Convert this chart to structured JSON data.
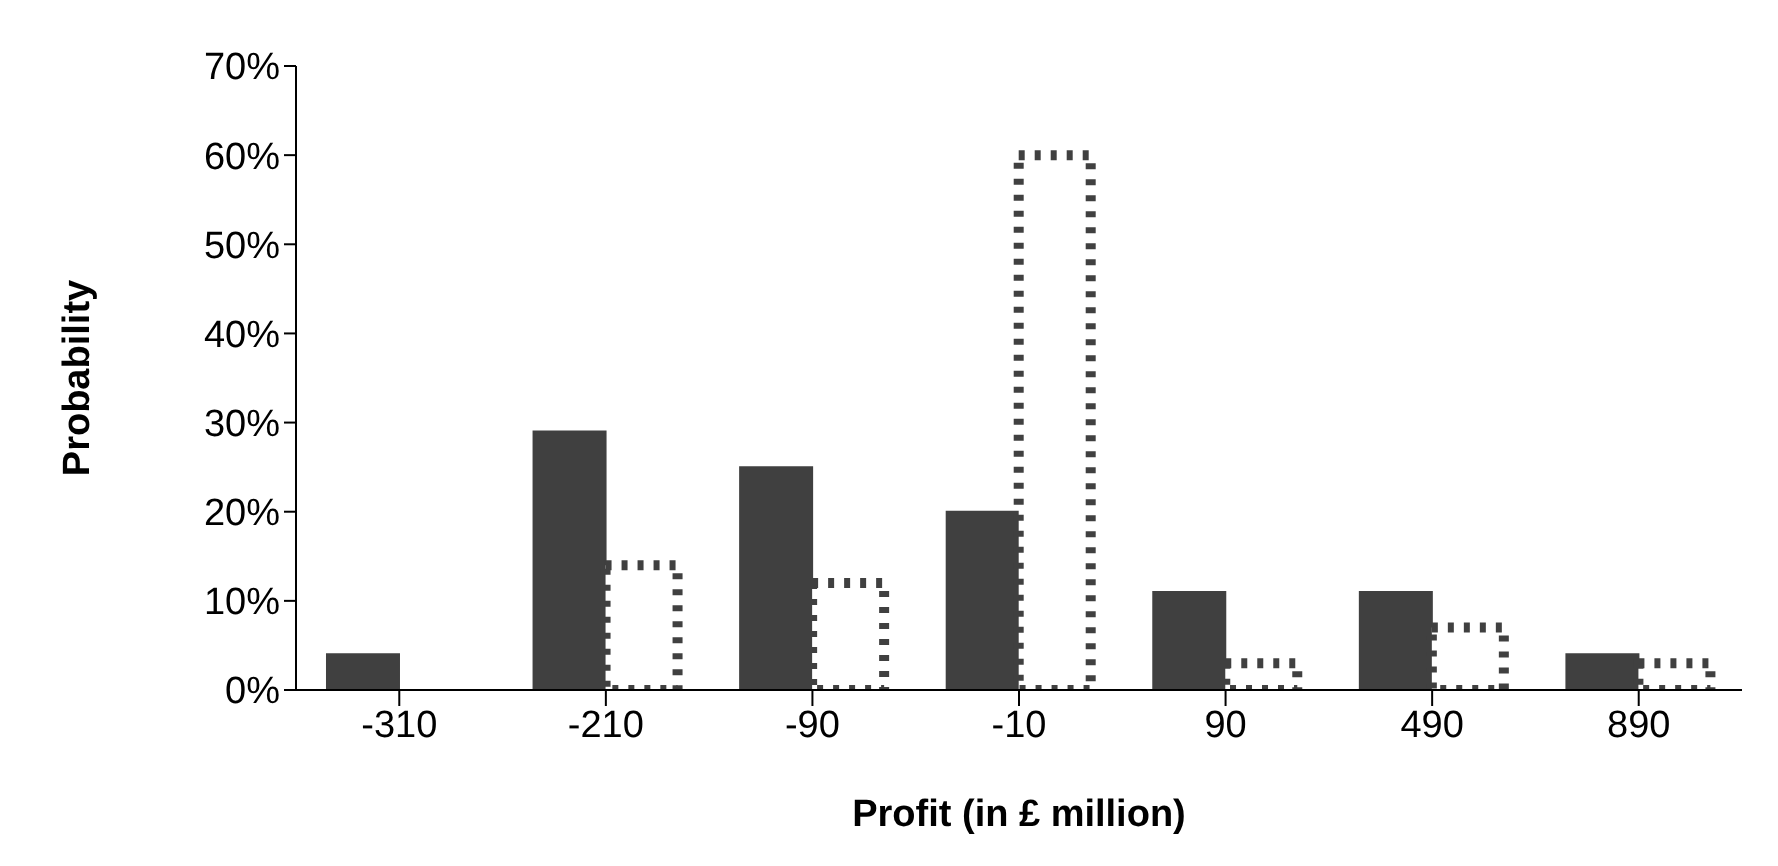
{
  "chart_data": {
    "type": "bar",
    "xlabel": "Profit (in £ million)",
    "ylabel": "Probability",
    "categories": [
      "-310",
      "-210",
      "-90",
      "-10",
      "90",
      "490",
      "890"
    ],
    "series": [
      {
        "color": "#404040",
        "values": [
          4,
          29,
          25,
          20,
          11,
          11,
          4
        ],
        "line_style": "solid"
      },
      {
        "color": "#404040",
        "values": [
          0,
          14,
          12,
          60,
          3,
          7,
          3
        ],
        "line_style": "dotted"
      }
    ],
    "ylim": [
      0,
      70
    ],
    "yticks": [
      {
        "value": 0,
        "label": "0%"
      },
      {
        "value": 10,
        "label": "10%"
      },
      {
        "value": 20,
        "label": "20%"
      },
      {
        "value": 30,
        "label": "30%"
      },
      {
        "value": 40,
        "label": "40%"
      },
      {
        "value": 50,
        "label": "50%"
      },
      {
        "value": 60,
        "label": "60%"
      },
      {
        "value": 70,
        "label": "70%"
      }
    ],
    "grid": false,
    "legend": false
  }
}
